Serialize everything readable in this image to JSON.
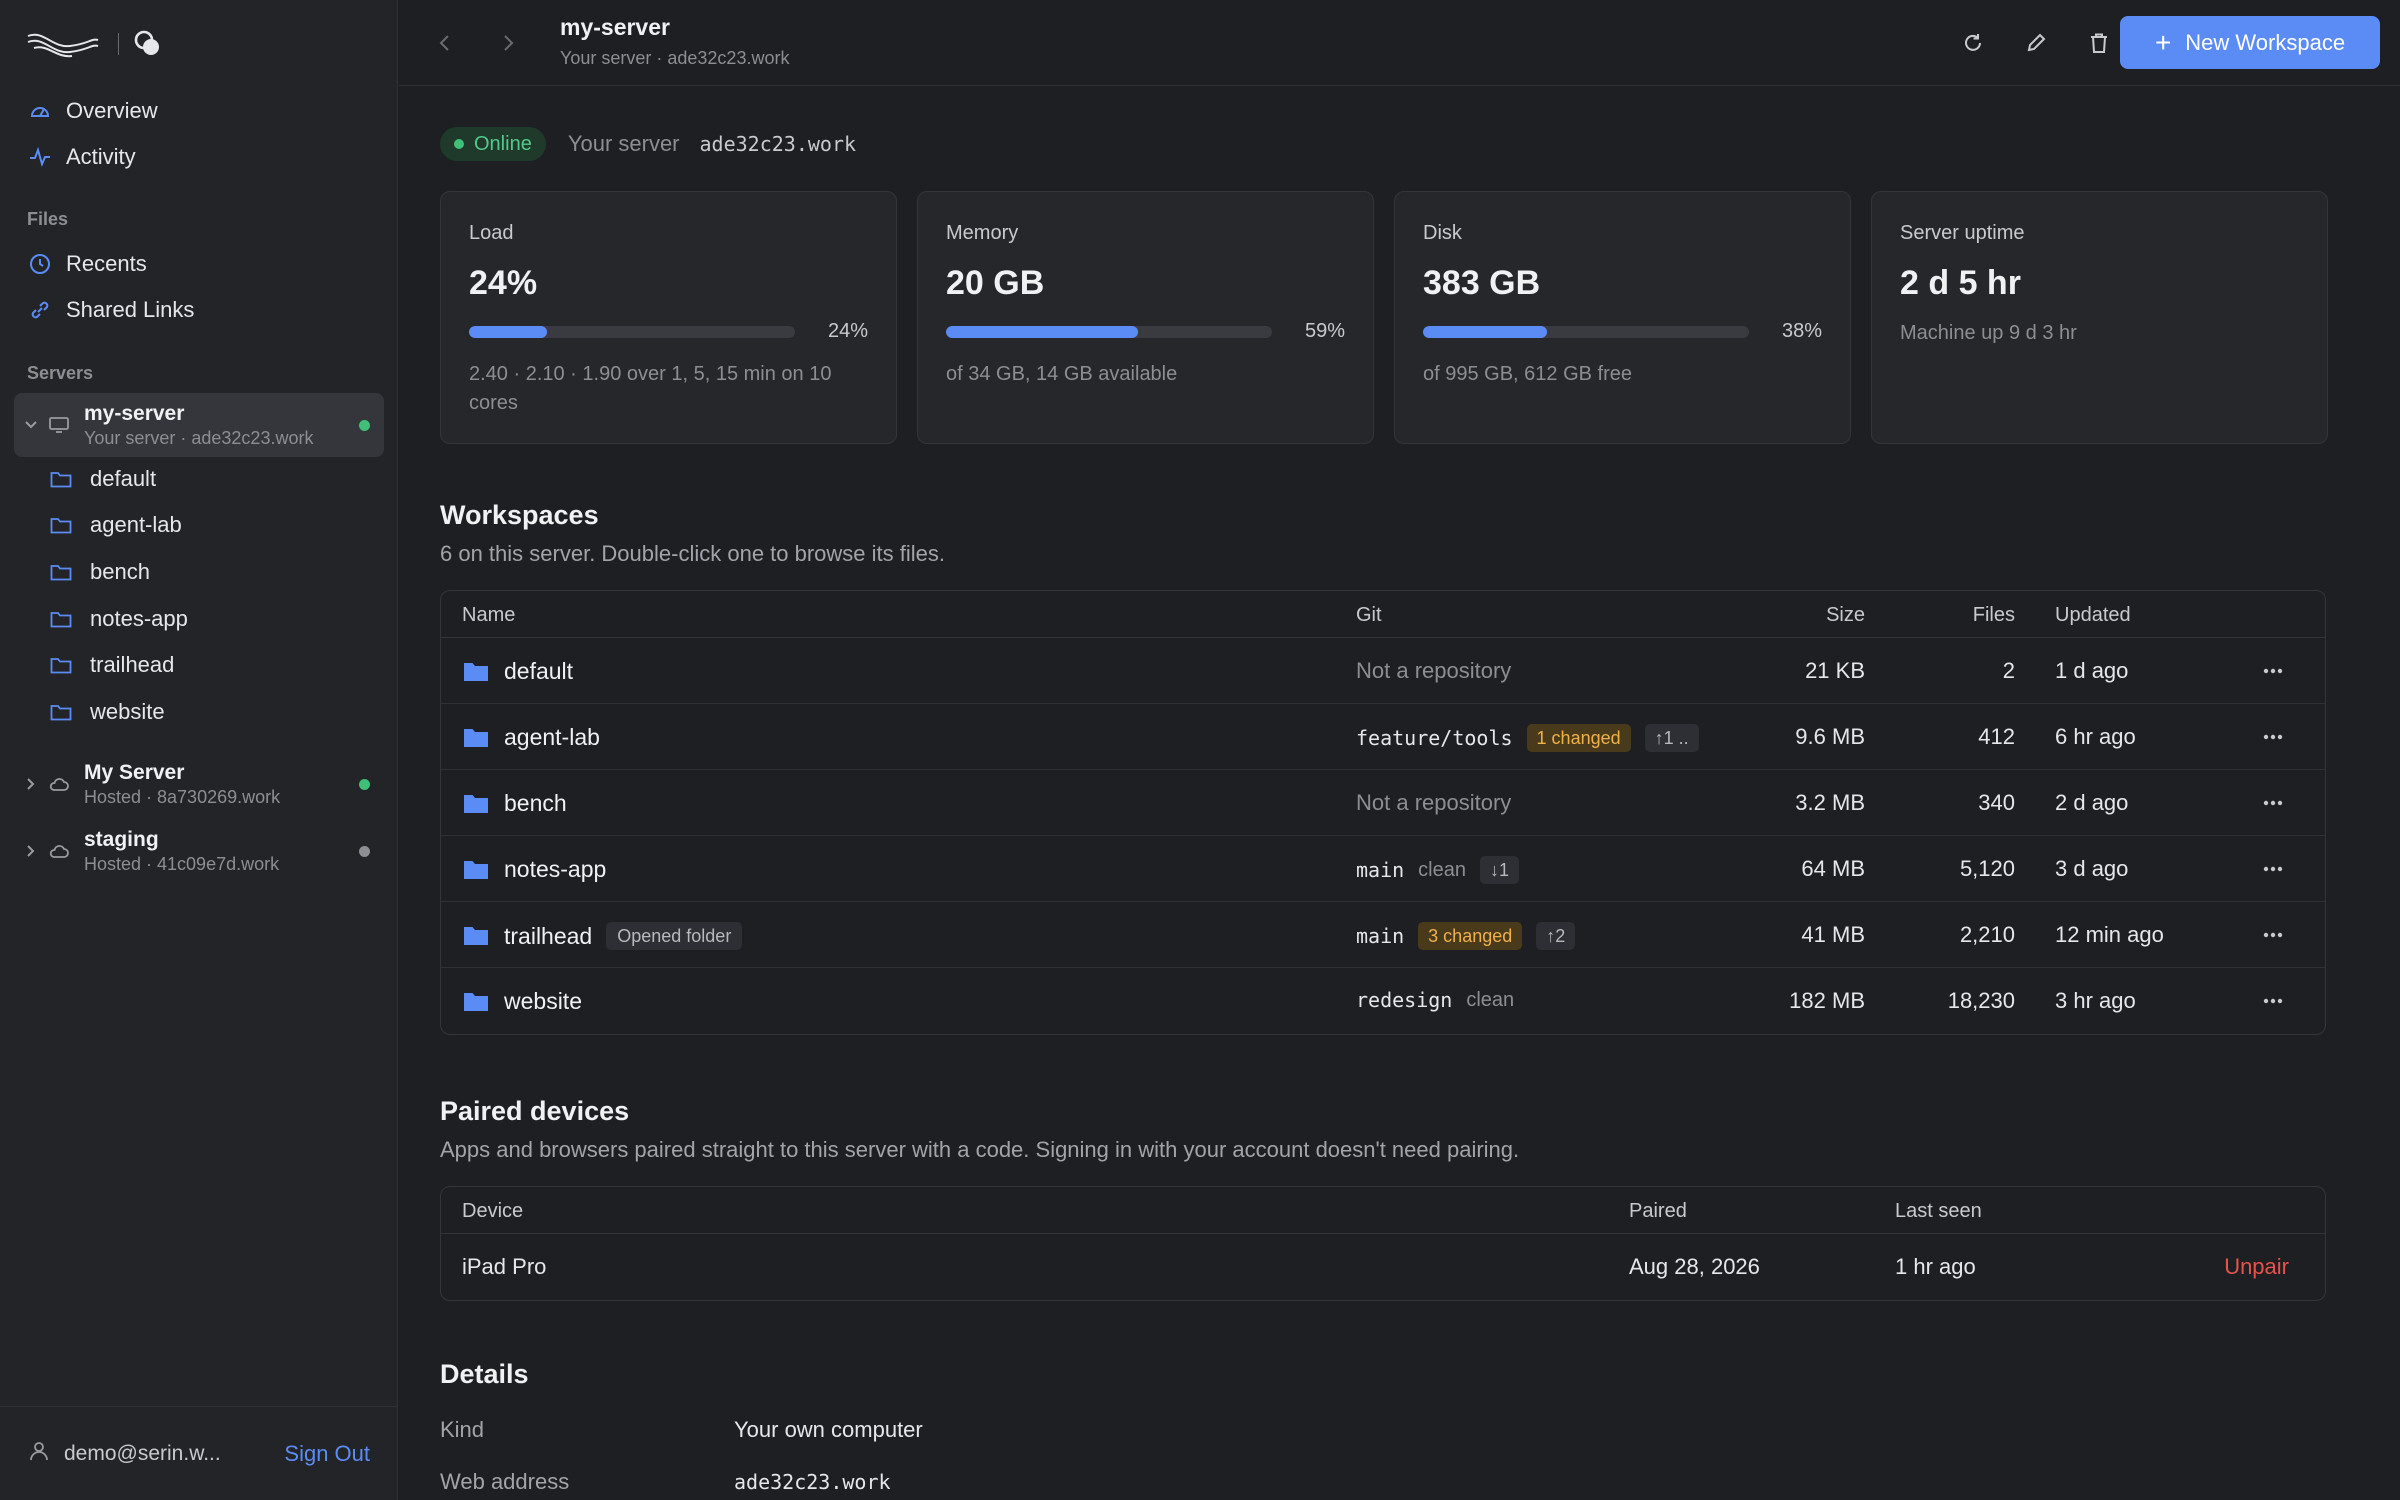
{
  "sidebar": {
    "nav": [
      {
        "label": "Overview",
        "icon": "gauge-icon"
      },
      {
        "label": "Activity",
        "icon": "pulse-icon"
      }
    ],
    "files_label": "Files",
    "files": [
      {
        "label": "Recents",
        "icon": "clock-icon"
      },
      {
        "label": "Shared Links",
        "icon": "link-icon"
      }
    ],
    "servers_label": "Servers",
    "servers": [
      {
        "name": "my-server",
        "sub": "Your server · ade32c23.work",
        "status": "online",
        "expanded": true
      },
      {
        "name": "My Server",
        "sub": "Hosted · 8a730269.work",
        "status": "online",
        "expanded": false
      },
      {
        "name": "staging",
        "sub": "Hosted · 41c09e7d.work",
        "status": "offline",
        "expanded": false
      }
    ],
    "workspaces": [
      "default",
      "agent-lab",
      "bench",
      "notes-app",
      "trailhead",
      "website"
    ],
    "user_email": "demo@serin.w...",
    "sign_out": "Sign Out"
  },
  "topbar": {
    "title": "my-server",
    "subtitle": "Your server · ade32c23.work",
    "new_workspace": "New Workspace"
  },
  "status": {
    "badge": "Online",
    "label": "Your server",
    "address": "ade32c23.work"
  },
  "cards": [
    {
      "label": "Load",
      "value": "24%",
      "percent": 24,
      "pct_text": "24%",
      "note": "2.40 · 2.10 · 1.90 over 1, 5, 15 min on 10 cores"
    },
    {
      "label": "Memory",
      "value": "20 GB",
      "percent": 59,
      "pct_text": "59%",
      "note": "of 34 GB, 14 GB available"
    },
    {
      "label": "Disk",
      "value": "383 GB",
      "percent": 38,
      "pct_text": "38%",
      "note": "of 995 GB, 612 GB free"
    },
    {
      "label": "Server uptime",
      "value": "2 d 5 hr",
      "note": "Machine up 9 d 3 hr"
    }
  ],
  "workspaces": {
    "title": "Workspaces",
    "description": "6 on this server. Double-click one to browse its files.",
    "columns": {
      "name": "Name",
      "git": "Git",
      "size": "Size",
      "files": "Files",
      "updated": "Updated"
    },
    "rows": [
      {
        "name": "default",
        "tag": "",
        "git_text": "Not a repository",
        "branch": "",
        "changed": "",
        "sync": "",
        "clean": "",
        "size": "21 KB",
        "files": "2",
        "updated": "1 d ago"
      },
      {
        "name": "agent-lab",
        "tag": "",
        "git_text": "",
        "branch": "feature/tools",
        "changed": "1 changed",
        "sync": "↑1 ..",
        "clean": "",
        "size": "9.6 MB",
        "files": "412",
        "updated": "6 hr ago"
      },
      {
        "name": "bench",
        "tag": "",
        "git_text": "Not a repository",
        "branch": "",
        "changed": "",
        "sync": "",
        "clean": "",
        "size": "3.2 MB",
        "files": "340",
        "updated": "2 d ago"
      },
      {
        "name": "notes-app",
        "tag": "",
        "git_text": "",
        "branch": "main",
        "changed": "",
        "sync": "↓1",
        "clean": "clean",
        "size": "64 MB",
        "files": "5,120",
        "updated": "3 d ago"
      },
      {
        "name": "trailhead",
        "tag": "Opened folder",
        "git_text": "",
        "branch": "main",
        "changed": "3 changed",
        "sync": "↑2",
        "clean": "",
        "size": "41 MB",
        "files": "2,210",
        "updated": "12 min ago"
      },
      {
        "name": "website",
        "tag": "",
        "git_text": "",
        "branch": "redesign",
        "changed": "",
        "sync": "",
        "clean": "clean",
        "size": "182 MB",
        "files": "18,230",
        "updated": "3 hr ago"
      }
    ]
  },
  "paired": {
    "title": "Paired devices",
    "description": "Apps and browsers paired straight to this server with a code. Signing in with your account doesn't need pairing.",
    "columns": {
      "device": "Device",
      "paired": "Paired",
      "last_seen": "Last seen"
    },
    "rows": [
      {
        "device": "iPad Pro",
        "paired": "Aug 28, 2026",
        "last_seen": "1 hr ago",
        "action": "Unpair"
      }
    ]
  },
  "details": {
    "title": "Details",
    "rows": [
      {
        "label": "Kind",
        "value": "Your own computer"
      },
      {
        "label": "Web address",
        "value": "ade32c23.work"
      }
    ]
  },
  "colors": {
    "accent": "#5b8cf5",
    "online": "#3fbf78",
    "offline": "#8d8e93",
    "warn": "#f0b04a",
    "danger": "#e5534b"
  }
}
